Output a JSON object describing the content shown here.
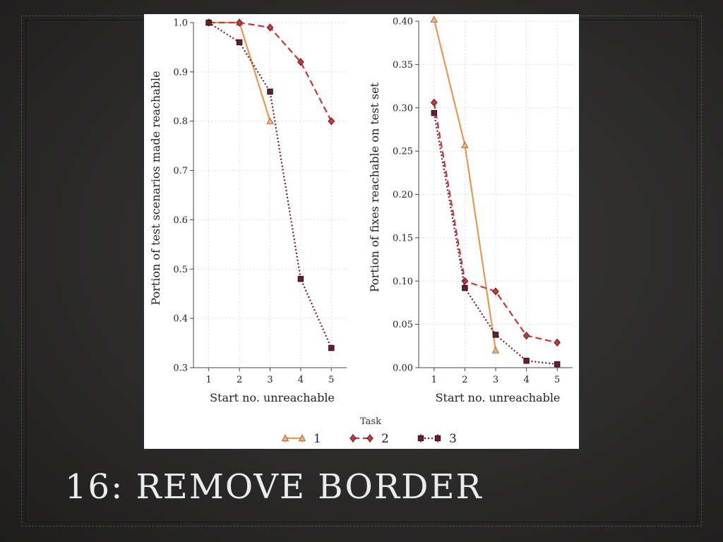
{
  "slide": {
    "title": "16: REMOVE BORDER"
  },
  "legend": {
    "title": "Task",
    "entries": [
      {
        "label": "1",
        "color": "#e8974f",
        "marker": "triangle",
        "dash": "solid"
      },
      {
        "label": "2",
        "color": "#c9353a",
        "marker": "diamond",
        "dash": "dashed"
      },
      {
        "label": "3",
        "color": "#6e1a30",
        "marker": "square",
        "dash": "dotted"
      }
    ]
  },
  "chart_data": [
    {
      "type": "line",
      "xlabel": "Start no. unreachable",
      "ylabel": "Portion of test scenarios made reachable",
      "x": [
        1,
        2,
        3,
        4,
        5
      ],
      "xlim": [
        0.5,
        5.5
      ],
      "ylim": [
        0.3,
        1.0
      ],
      "yticks": [
        "0.3",
        "0.4",
        "0.5",
        "0.6",
        "0.7",
        "0.8",
        "0.9",
        "1.0"
      ],
      "grid": true,
      "series": [
        {
          "name": "1",
          "x": [
            1,
            2,
            3
          ],
          "values": [
            1.0,
            1.0,
            0.8
          ]
        },
        {
          "name": "2",
          "x": [
            1,
            2,
            3,
            4,
            5
          ],
          "values": [
            1.0,
            1.0,
            0.99,
            0.92,
            0.8
          ]
        },
        {
          "name": "3",
          "x": [
            1,
            2,
            3,
            4,
            5
          ],
          "values": [
            1.0,
            0.96,
            0.86,
            0.48,
            0.34
          ]
        }
      ]
    },
    {
      "type": "line",
      "xlabel": "Start no. unreachable",
      "ylabel": "Portion of fixes reachable on test set",
      "x": [
        1,
        2,
        3,
        4,
        5
      ],
      "xlim": [
        0.5,
        5.5
      ],
      "ylim": [
        0.0,
        0.4
      ],
      "yticks": [
        "0.00",
        "0.05",
        "0.10",
        "0.15",
        "0.20",
        "0.25",
        "0.30",
        "0.35",
        "0.40"
      ],
      "grid": true,
      "series": [
        {
          "name": "1",
          "x": [
            1,
            2,
            3
          ],
          "values": [
            0.402,
            0.257,
            0.02
          ]
        },
        {
          "name": "2",
          "x": [
            1,
            2,
            3,
            4,
            5
          ],
          "values": [
            0.306,
            0.1,
            0.088,
            0.037,
            0.029
          ]
        },
        {
          "name": "3",
          "x": [
            1,
            2,
            3,
            4,
            5
          ],
          "values": [
            0.294,
            0.092,
            0.038,
            0.008,
            0.004
          ]
        }
      ]
    }
  ]
}
